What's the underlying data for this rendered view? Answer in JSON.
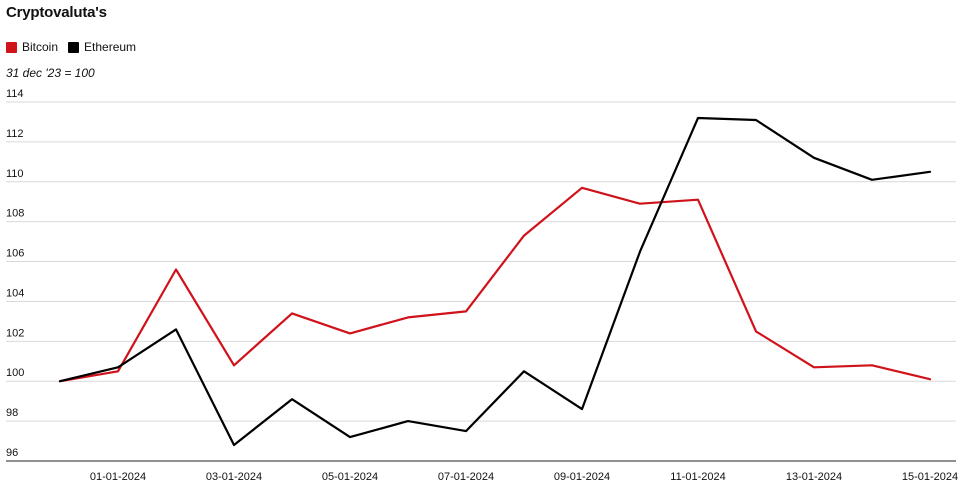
{
  "colors": {
    "bitcoin": "#d0121b",
    "ethereum": "#000000",
    "grid": "#d9d9d9",
    "baseline": "#222222"
  },
  "chart_data": {
    "type": "line",
    "title": "Cryptovaluta's",
    "subtitle": "31 dec '23 = 100",
    "legend_position": "top-left",
    "grid": true,
    "ylim": [
      96,
      114
    ],
    "yticks": [
      96,
      98,
      100,
      102,
      104,
      106,
      108,
      110,
      112,
      114
    ],
    "x": [
      "31-12-2023",
      "01-01-2024",
      "02-01-2024",
      "03-01-2024",
      "04-01-2024",
      "05-01-2024",
      "06-01-2024",
      "07-01-2024",
      "08-01-2024",
      "09-01-2024",
      "10-01-2024",
      "11-01-2024",
      "12-01-2024",
      "13-01-2024",
      "14-01-2024",
      "15-01-2024"
    ],
    "xtick_labels": [
      "01-01-2024",
      "03-01-2024",
      "05-01-2024",
      "07-01-2024",
      "09-01-2024",
      "11-01-2024",
      "13-01-2024",
      "15-01-2024"
    ],
    "series": [
      {
        "name": "Bitcoin",
        "color": "#d0121b",
        "values": [
          100.0,
          100.5,
          105.6,
          100.8,
          103.4,
          102.4,
          103.2,
          103.5,
          107.3,
          109.7,
          108.9,
          109.1,
          102.5,
          100.7,
          100.8,
          100.1
        ]
      },
      {
        "name": "Ethereum",
        "color": "#000000",
        "values": [
          100.0,
          100.7,
          102.6,
          96.8,
          99.1,
          97.2,
          98.0,
          97.5,
          100.5,
          98.6,
          106.5,
          113.2,
          113.1,
          111.2,
          110.1,
          110.5
        ]
      }
    ]
  }
}
